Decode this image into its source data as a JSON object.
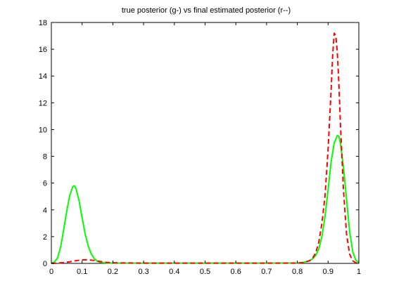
{
  "chart_data": {
    "type": "line",
    "title": "true posterior (g-) vs final estimated posterior (r--)",
    "xlabel": "",
    "ylabel": "",
    "xlim": [
      0,
      1
    ],
    "ylim": [
      0,
      18
    ],
    "xticks": [
      0,
      0.1,
      0.2,
      0.3,
      0.4,
      0.5,
      0.6,
      0.7,
      0.8,
      0.9,
      1
    ],
    "xtick_labels": [
      "0",
      "0.1",
      "0.2",
      "0.3",
      "0.4",
      "0.5",
      "0.6",
      "0.7",
      "0.8",
      "0.9",
      "1"
    ],
    "yticks": [
      0,
      2,
      4,
      6,
      8,
      10,
      12,
      14,
      16,
      18
    ],
    "ytick_labels": [
      "0",
      "2",
      "4",
      "6",
      "8",
      "10",
      "12",
      "14",
      "16",
      "18"
    ],
    "grid": false,
    "legend": "none",
    "series": [
      {
        "color": "#00ff00",
        "style": "solid",
        "x": [
          0,
          0.01,
          0.02,
          0.03,
          0.04,
          0.05,
          0.06,
          0.07,
          0.075,
          0.08,
          0.09,
          0.1,
          0.11,
          0.12,
          0.13,
          0.14,
          0.15,
          0.16,
          0.18,
          0.2,
          0.3,
          0.4,
          0.5,
          0.6,
          0.7,
          0.8,
          0.82,
          0.84,
          0.85,
          0.86,
          0.87,
          0.88,
          0.89,
          0.9,
          0.91,
          0.92,
          0.93,
          0.935,
          0.94,
          0.95,
          0.96,
          0.97,
          0.98,
          0.99,
          1
        ],
        "y": [
          0.02,
          0.1,
          0.4,
          1.2,
          2.5,
          3.9,
          5.1,
          5.75,
          5.8,
          5.6,
          4.7,
          3.4,
          2.2,
          1.3,
          0.7,
          0.35,
          0.15,
          0.07,
          0.03,
          0.02,
          0.02,
          0.02,
          0.02,
          0.02,
          0.02,
          0.03,
          0.08,
          0.2,
          0.35,
          0.6,
          1.1,
          2.0,
          3.5,
          5.5,
          7.6,
          9.0,
          9.55,
          9.5,
          9.0,
          7.2,
          4.8,
          2.4,
          0.9,
          0.25,
          0.05
        ]
      },
      {
        "color": "#ff0000",
        "style": "dashed",
        "x": [
          0,
          0.02,
          0.04,
          0.06,
          0.08,
          0.1,
          0.12,
          0.14,
          0.16,
          0.18,
          0.2,
          0.3,
          0.4,
          0.5,
          0.6,
          0.7,
          0.8,
          0.82,
          0.84,
          0.85,
          0.86,
          0.87,
          0.88,
          0.89,
          0.9,
          0.91,
          0.915,
          0.92,
          0.925,
          0.93,
          0.935,
          0.94,
          0.95,
          0.96,
          0.97,
          0.98,
          0.99,
          1
        ],
        "y": [
          0.0,
          0.02,
          0.06,
          0.12,
          0.2,
          0.26,
          0.27,
          0.22,
          0.14,
          0.07,
          0.04,
          0.02,
          0.02,
          0.02,
          0.02,
          0.02,
          0.02,
          0.06,
          0.2,
          0.4,
          0.8,
          1.6,
          3.0,
          5.0,
          8.5,
          13.0,
          15.6,
          17.2,
          17.0,
          15.8,
          13.5,
          10.5,
          5.5,
          2.2,
          0.7,
          0.2,
          0.05,
          0.01
        ]
      }
    ]
  }
}
